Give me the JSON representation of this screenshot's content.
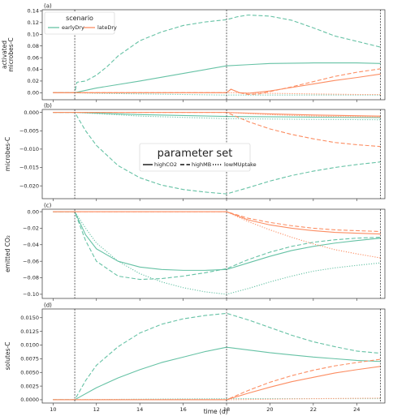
{
  "chart_data": {
    "type": "line",
    "xlabel": "time (d)",
    "xlim": [
      9.5,
      25.3
    ],
    "xticks": [
      10,
      12,
      14,
      16,
      18,
      20,
      22,
      24
    ],
    "event_lines": [
      11,
      18,
      25.1
    ],
    "colors": {
      "earlyDry": "#66c2a5",
      "lateDry": "#fc8d62"
    },
    "legend_scenario": {
      "title": "scenario",
      "placement": "upper-left of panel (a)",
      "entries": [
        {
          "key": "earlyDry",
          "label": "earlyDry"
        },
        {
          "key": "lateDry",
          "label": "lateDry"
        }
      ]
    },
    "legend_params": {
      "title": "parameter set",
      "placement": "center of panel (b)",
      "entries": [
        {
          "key": "highCO2",
          "label": "highCO2",
          "style": "solid"
        },
        {
          "key": "highMB",
          "label": "highMB",
          "style": "dashed"
        },
        {
          "key": "lowMUptake",
          "label": "lowMUptake",
          "style": "dotted"
        }
      ]
    },
    "panels": [
      {
        "letter": "(a)",
        "ylabel": [
          "activated",
          "microbes-C"
        ],
        "ylim": [
          -0.012,
          0.142
        ],
        "yticks": [
          0.0,
          0.02,
          0.04,
          0.06,
          0.08,
          0.1,
          0.12,
          0.14
        ],
        "ytick_labels": [
          "0.00",
          "0.02",
          "0.04",
          "0.06",
          "0.08",
          "0.10",
          "0.12",
          "0.14"
        ],
        "series": [
          {
            "scenario": "earlyDry",
            "param": "highCO2",
            "x": [
              10,
              11,
              11.5,
              12,
              14,
              16,
              18,
              19,
              20,
              22,
              24,
              25.1
            ],
            "y": [
              0,
              0,
              0.004,
              0.008,
              0.02,
              0.033,
              0.046,
              0.048,
              0.05,
              0.051,
              0.051,
              0.05
            ]
          },
          {
            "scenario": "earlyDry",
            "param": "highMB",
            "x": [
              10,
              11,
              11.1,
              11.5,
              12,
              12.5,
              13,
              14,
              15,
              16,
              17,
              18,
              18.5,
              19,
              20,
              21,
              22,
              23,
              24,
              25.1
            ],
            "y": [
              0,
              0,
              0.018,
              0.02,
              0.03,
              0.045,
              0.063,
              0.089,
              0.104,
              0.115,
              0.121,
              0.125,
              0.13,
              0.133,
              0.131,
              0.124,
              0.111,
              0.097,
              0.088,
              0.078
            ]
          },
          {
            "scenario": "earlyDry",
            "param": "lowMUptake",
            "x": [
              10,
              11,
              12,
              14,
              16,
              18,
              20,
              22,
              24,
              25.1
            ],
            "y": [
              0,
              0,
              -0.001,
              -0.002,
              -0.003,
              -0.004,
              -0.004,
              -0.004,
              -0.004,
              -0.004
            ]
          },
          {
            "scenario": "lateDry",
            "param": "highCO2",
            "x": [
              10,
              18,
              18.2,
              18.6,
              19,
              20,
              21,
              22,
              23,
              24,
              25.1
            ],
            "y": [
              0,
              0,
              0.006,
              0.0,
              -0.001,
              0.003,
              0.009,
              0.015,
              0.021,
              0.026,
              0.032
            ]
          },
          {
            "scenario": "lateDry",
            "param": "highMB",
            "x": [
              10,
              18,
              18.2,
              18.6,
              19,
              19.5,
              20,
              21,
              22,
              23,
              24,
              25.1
            ],
            "y": [
              0,
              0,
              0.006,
              0.0,
              -0.003,
              -0.002,
              0.002,
              0.01,
              0.019,
              0.028,
              0.035,
              0.041
            ]
          },
          {
            "scenario": "lateDry",
            "param": "lowMUptake",
            "x": [
              10,
              18,
              20,
              22,
              24,
              25.1
            ],
            "y": [
              0,
              0,
              -0.001,
              -0.002,
              -0.003,
              -0.003
            ]
          }
        ]
      },
      {
        "letter": "(b)",
        "ylabel": [
          "microbes-C"
        ],
        "ylim": [
          -0.0235,
          0.0008
        ],
        "yticks": [
          0.0,
          -0.005,
          -0.01,
          -0.015,
          -0.02
        ],
        "ytick_labels": [
          "0.000",
          "−0.005",
          "−0.010",
          "−0.015",
          "−0.020"
        ],
        "series": [
          {
            "scenario": "earlyDry",
            "param": "highCO2",
            "x": [
              10,
              11,
              14,
              18,
              22,
              25.1
            ],
            "y": [
              0,
              0,
              -0.0006,
              -0.0011,
              -0.0013,
              -0.0014
            ]
          },
          {
            "scenario": "earlyDry",
            "param": "highMB",
            "x": [
              10,
              11,
              11.5,
              12,
              13,
              14,
              15,
              16,
              17,
              18,
              19,
              20,
              21,
              22,
              23,
              24,
              25.1
            ],
            "y": [
              0,
              0,
              -0.005,
              -0.009,
              -0.0145,
              -0.0178,
              -0.0198,
              -0.021,
              -0.0217,
              -0.0222,
              -0.0205,
              -0.0187,
              -0.0172,
              -0.016,
              -0.015,
              -0.0142,
              -0.0135
            ]
          },
          {
            "scenario": "earlyDry",
            "param": "lowMUptake",
            "x": [
              10,
              11,
              14,
              18,
              22,
              25.1
            ],
            "y": [
              0,
              0,
              -0.001,
              -0.0017,
              -0.0019,
              -0.002
            ]
          },
          {
            "scenario": "lateDry",
            "param": "highCO2",
            "x": [
              10,
              18,
              20,
              22,
              25.1
            ],
            "y": [
              0,
              0,
              -0.0004,
              -0.0007,
              -0.001
            ]
          },
          {
            "scenario": "lateDry",
            "param": "highMB",
            "x": [
              10,
              18,
              19,
              20,
              21,
              22,
              23,
              24,
              25.1
            ],
            "y": [
              0,
              0,
              -0.0025,
              -0.0045,
              -0.006,
              -0.0072,
              -0.0082,
              -0.0088,
              -0.0093
            ]
          },
          {
            "scenario": "lateDry",
            "param": "lowMUptake",
            "x": [
              10,
              18,
              20,
              22,
              25.1
            ],
            "y": [
              0,
              0,
              -0.0006,
              -0.001,
              -0.0013
            ]
          }
        ]
      },
      {
        "letter": "(c)",
        "ylabel": [
          "emitted CO₂"
        ],
        "ylim": [
          -0.105,
          0.003
        ],
        "yticks": [
          0.0,
          -0.02,
          -0.04,
          -0.06,
          -0.08,
          -0.1
        ],
        "ytick_labels": [
          "0.00",
          "−0.02",
          "−0.04",
          "−0.06",
          "−0.08",
          "−0.10"
        ],
        "series": [
          {
            "scenario": "earlyDry",
            "param": "highCO2",
            "x": [
              10,
              11,
              11.5,
              12,
              13,
              14,
              15,
              16,
              17,
              18,
              19,
              20,
              21,
              22,
              23,
              24,
              25.1
            ],
            "y": [
              0,
              0,
              -0.028,
              -0.045,
              -0.06,
              -0.067,
              -0.07,
              -0.071,
              -0.071,
              -0.07,
              -0.062,
              -0.054,
              -0.047,
              -0.042,
              -0.038,
              -0.035,
              -0.032
            ]
          },
          {
            "scenario": "earlyDry",
            "param": "highMB",
            "x": [
              10,
              11,
              11.5,
              12,
              13,
              14,
              15,
              16,
              17,
              18,
              19,
              20,
              21,
              22,
              23,
              24,
              25.1
            ],
            "y": [
              0,
              0,
              -0.035,
              -0.06,
              -0.078,
              -0.082,
              -0.081,
              -0.078,
              -0.074,
              -0.069,
              -0.058,
              -0.049,
              -0.042,
              -0.037,
              -0.034,
              -0.032,
              -0.031
            ]
          },
          {
            "scenario": "earlyDry",
            "param": "lowMUptake",
            "x": [
              10,
              11,
              11.5,
              12,
              13,
              14,
              15,
              16,
              17,
              18,
              19,
              20,
              21,
              22,
              23,
              24,
              25.1
            ],
            "y": [
              0,
              0,
              -0.02,
              -0.038,
              -0.06,
              -0.075,
              -0.085,
              -0.092,
              -0.097,
              -0.1,
              -0.093,
              -0.085,
              -0.078,
              -0.072,
              -0.068,
              -0.065,
              -0.062
            ]
          },
          {
            "scenario": "lateDry",
            "param": "highCO2",
            "x": [
              10,
              18,
              19,
              20,
              21,
              22,
              23,
              24,
              25.1
            ],
            "y": [
              0,
              0,
              -0.01,
              -0.016,
              -0.02,
              -0.023,
              -0.025,
              -0.026,
              -0.027
            ]
          },
          {
            "scenario": "lateDry",
            "param": "highMB",
            "x": [
              10,
              18,
              19,
              20,
              21,
              22,
              23,
              24,
              25.1
            ],
            "y": [
              0,
              0,
              -0.008,
              -0.013,
              -0.017,
              -0.02,
              -0.022,
              -0.023,
              -0.024
            ]
          },
          {
            "scenario": "lateDry",
            "param": "lowMUptake",
            "x": [
              10,
              18,
              19,
              20,
              21,
              22,
              23,
              24,
              25.1
            ],
            "y": [
              0,
              0,
              -0.012,
              -0.022,
              -0.031,
              -0.039,
              -0.046,
              -0.051,
              -0.056
            ]
          }
        ]
      },
      {
        "letter": "(d)",
        "ylabel": [
          "solutes-C"
        ],
        "ylim": [
          -0.0006,
          0.0166
        ],
        "yticks": [
          0.0,
          0.0025,
          0.005,
          0.0075,
          0.01,
          0.0125,
          0.015
        ],
        "ytick_labels": [
          "0.0000",
          "0.0025",
          "0.0050",
          "0.0075",
          "0.0100",
          "0.0125",
          "0.0150"
        ],
        "series": [
          {
            "scenario": "earlyDry",
            "param": "highCO2",
            "x": [
              10,
              11,
              12,
              13,
              14,
              15,
              16,
              17,
              18,
              19,
              20,
              21,
              22,
              23,
              24,
              25.1
            ],
            "y": [
              0,
              0,
              0.0022,
              0.004,
              0.0055,
              0.0068,
              0.0078,
              0.0088,
              0.0096,
              0.0091,
              0.0086,
              0.0082,
              0.0078,
              0.0075,
              0.0072,
              0.007
            ]
          },
          {
            "scenario": "earlyDry",
            "param": "highMB",
            "x": [
              10,
              11,
              11.5,
              12,
              13,
              14,
              15,
              16,
              17,
              18,
              19,
              20,
              21,
              22,
              23,
              24,
              25.1
            ],
            "y": [
              0,
              0,
              0.0035,
              0.0063,
              0.0097,
              0.0122,
              0.0138,
              0.0148,
              0.0154,
              0.0158,
              0.0146,
              0.0132,
              0.0118,
              0.0106,
              0.0097,
              0.0089,
              0.0085
            ]
          },
          {
            "scenario": "earlyDry",
            "param": "lowMUptake",
            "x": [
              10,
              11,
              14,
              18,
              22,
              25.1
            ],
            "y": [
              0,
              0,
              0.0001,
              0.0002,
              0.0002,
              0.0002
            ]
          },
          {
            "scenario": "lateDry",
            "param": "highCO2",
            "x": [
              10,
              18,
              19,
              20,
              21,
              22,
              23,
              24,
              25.1
            ],
            "y": [
              0,
              0,
              0.0012,
              0.0023,
              0.0033,
              0.0041,
              0.0049,
              0.0055,
              0.0061
            ]
          },
          {
            "scenario": "lateDry",
            "param": "highMB",
            "x": [
              10,
              18,
              19,
              20,
              21,
              22,
              23,
              24,
              25.1
            ],
            "y": [
              0,
              0,
              0.0017,
              0.0032,
              0.0044,
              0.0054,
              0.0062,
              0.0068,
              0.0074
            ]
          },
          {
            "scenario": "lateDry",
            "param": "lowMUptake",
            "x": [
              10,
              18,
              20,
              22,
              25.1
            ],
            "y": [
              0,
              0,
              0.0001,
              0.0002,
              0.0003
            ]
          }
        ]
      }
    ]
  }
}
